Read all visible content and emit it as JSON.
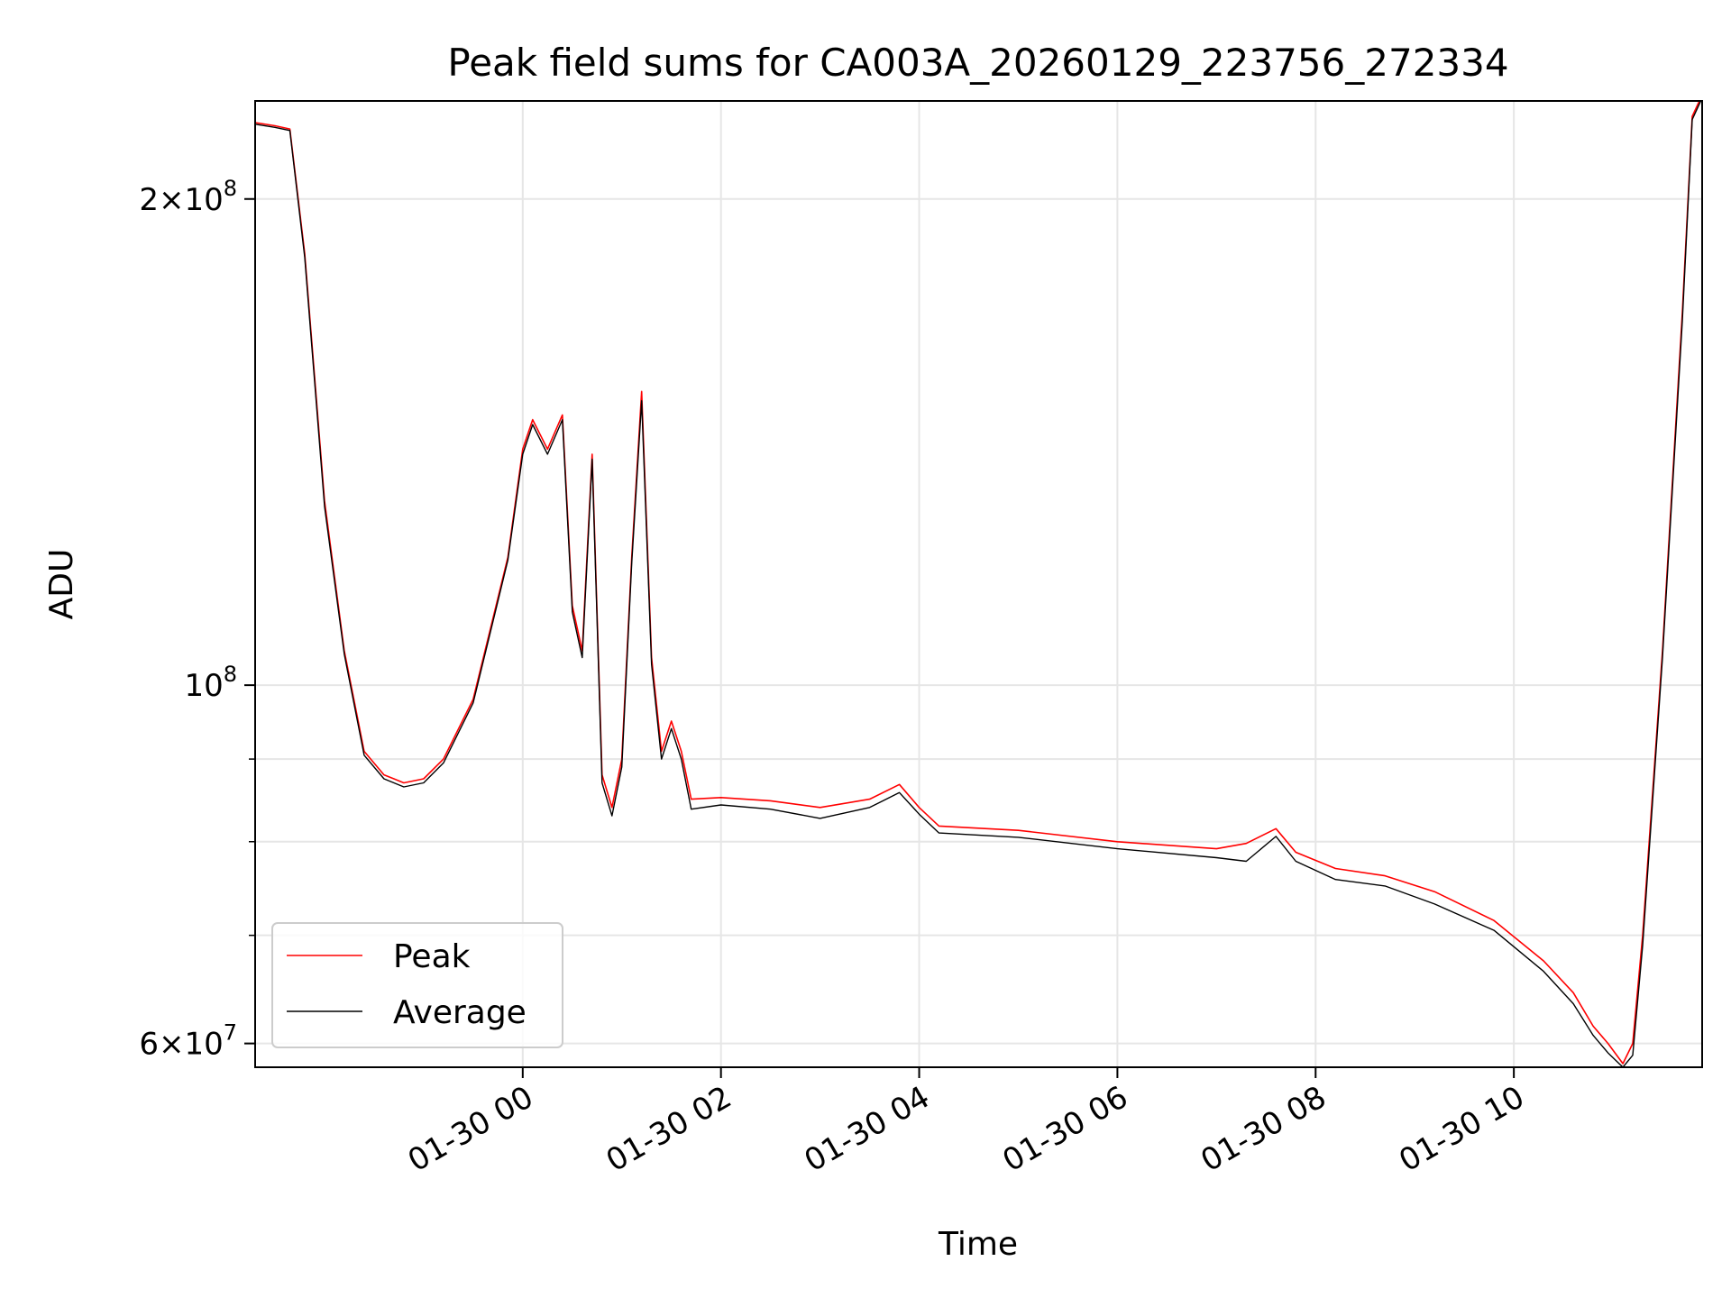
{
  "chart_data": {
    "type": "line",
    "title": "Peak field sums for CA003A_20260129_223756_272334",
    "xlabel": "Time",
    "ylabel": "ADU",
    "yscale": "log",
    "xlim": [
      -2.7,
      11.9
    ],
    "ylim": [
      58000000,
      230000000
    ],
    "grid": true,
    "legend_position": "lower-left",
    "xticks": [
      {
        "value": 0,
        "label": "01-30 00"
      },
      {
        "value": 2,
        "label": "01-30 02"
      },
      {
        "value": 4,
        "label": "01-30 04"
      },
      {
        "value": 6,
        "label": "01-30 06"
      },
      {
        "value": 8,
        "label": "01-30 08"
      },
      {
        "value": 10,
        "label": "01-30 10"
      }
    ],
    "yticks_major": [
      {
        "value": 100000000,
        "base": "10",
        "exp": "8",
        "label_style": "power"
      },
      {
        "value": 200000000,
        "mant": "2",
        "base": "10",
        "exp": "8",
        "label_style": "sci"
      },
      {
        "value": 60000000,
        "mant": "6",
        "base": "10",
        "exp": "7",
        "label_style": "sci"
      }
    ],
    "yticks_minor": [
      70000000,
      80000000,
      90000000
    ],
    "series": [
      {
        "name": "Peak",
        "color": "#ff0000",
        "x": [
          -2.7,
          -2.5,
          -2.35,
          -2.2,
          -2.0,
          -1.8,
          -1.6,
          -1.4,
          -1.3,
          -1.2,
          -1.0,
          -0.8,
          -0.5,
          -0.3,
          -0.15,
          0.0,
          0.1,
          0.25,
          0.4,
          0.5,
          0.6,
          0.7,
          0.8,
          0.9,
          1.0,
          1.1,
          1.2,
          1.3,
          1.4,
          1.5,
          1.6,
          1.7,
          2.0,
          2.5,
          3.0,
          3.5,
          3.8,
          4.0,
          4.2,
          5.0,
          6.0,
          7.0,
          7.3,
          7.6,
          7.8,
          8.2,
          8.7,
          9.2,
          9.8,
          10.3,
          10.6,
          10.8,
          10.95,
          11.1,
          11.2,
          11.3,
          11.5,
          11.7,
          11.8,
          11.9
        ],
        "y": [
          223000000,
          222000000,
          221000000,
          185000000,
          130000000,
          105000000,
          91000000,
          88000000,
          87500000,
          87000000,
          87500000,
          90000000,
          98000000,
          110000000,
          120000000,
          140000000,
          146000000,
          140000000,
          147000000,
          112000000,
          105000000,
          139000000,
          88000000,
          84000000,
          90000000,
          120000000,
          152000000,
          104000000,
          91000000,
          95000000,
          91000000,
          85000000,
          85200000,
          84800000,
          84000000,
          85000000,
          86800000,
          84000000,
          81800000,
          81300000,
          80000000,
          79200000,
          79800000,
          81500000,
          78800000,
          77000000,
          76200000,
          74500000,
          71500000,
          67500000,
          64500000,
          61500000,
          60000000,
          58300000,
          60000000,
          70000000,
          105000000,
          170000000,
          225000000,
          232000000
        ]
      },
      {
        "name": "Average",
        "color": "#000000",
        "x": [
          -2.7,
          -2.5,
          -2.35,
          -2.2,
          -2.0,
          -1.8,
          -1.6,
          -1.4,
          -1.3,
          -1.2,
          -1.0,
          -0.8,
          -0.5,
          -0.3,
          -0.15,
          0.0,
          0.1,
          0.25,
          0.4,
          0.5,
          0.6,
          0.7,
          0.8,
          0.9,
          1.0,
          1.1,
          1.2,
          1.3,
          1.4,
          1.5,
          1.6,
          1.7,
          2.0,
          2.5,
          3.0,
          3.5,
          3.8,
          4.0,
          4.2,
          5.0,
          6.0,
          7.0,
          7.3,
          7.6,
          7.8,
          8.2,
          8.7,
          9.2,
          9.8,
          10.3,
          10.6,
          10.8,
          10.95,
          11.1,
          11.2,
          11.3,
          11.5,
          11.7,
          11.8,
          11.9
        ],
        "y": [
          222500000,
          221500000,
          220500000,
          184000000,
          129000000,
          104500000,
          90500000,
          87500000,
          87000000,
          86500000,
          87000000,
          89500000,
          97500000,
          109500000,
          119500000,
          139000000,
          145000000,
          139000000,
          146000000,
          111000000,
          104000000,
          138000000,
          87000000,
          83000000,
          89000000,
          119000000,
          150000000,
          103000000,
          90000000,
          94000000,
          90000000,
          83800000,
          84300000,
          83800000,
          82700000,
          84000000,
          85800000,
          83200000,
          81000000,
          80500000,
          79200000,
          78200000,
          77800000,
          80600000,
          77800000,
          75800000,
          75100000,
          73200000,
          70500000,
          66500000,
          63500000,
          60700000,
          59200000,
          58000000,
          59000000,
          69000000,
          104000000,
          168000000,
          224000000,
          231000000
        ]
      }
    ]
  }
}
